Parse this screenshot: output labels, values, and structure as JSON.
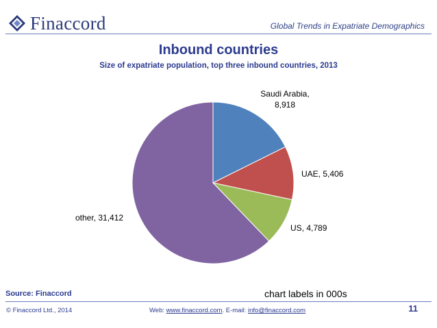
{
  "logo": {
    "text": "Finaccord"
  },
  "header": {
    "title": "Global Trends in Expatriate Demographics"
  },
  "slide": {
    "title": "Inbound countries",
    "subtitle": "Size of expatriate population, top three inbound countries, 2013"
  },
  "chart_data": {
    "type": "pie",
    "slices": [
      {
        "name": "Saudi Arabia",
        "value": 8918,
        "value_label": "8,918",
        "color": "#4f81bd"
      },
      {
        "name": "UAE",
        "value": 5406,
        "value_label": "5,406",
        "color": "#c0504d"
      },
      {
        "name": "US",
        "value": 4789,
        "value_label": "4,789",
        "color": "#9bbb59"
      },
      {
        "name": "other",
        "value": 31412,
        "value_label": "31,412",
        "color": "#8064a2"
      }
    ],
    "start": "12 o'clock",
    "direction": "clockwise",
    "legend": "none",
    "units_note": "chart labels in 000s"
  },
  "footer": {
    "source": "Source: Finaccord",
    "copyright": "© Finaccord Ltd., 2014",
    "web_prefix": "Web: ",
    "web_link": "www.finaccord.com",
    "email_prefix": ". E-mail: ",
    "email_link": "info@finaccord.com",
    "page_number": "11"
  },
  "colors": {
    "brand": "#2b3a8f",
    "accent": "#2d3f86"
  },
  "icons": {
    "logo": "finaccord-diamond-logo-icon"
  }
}
